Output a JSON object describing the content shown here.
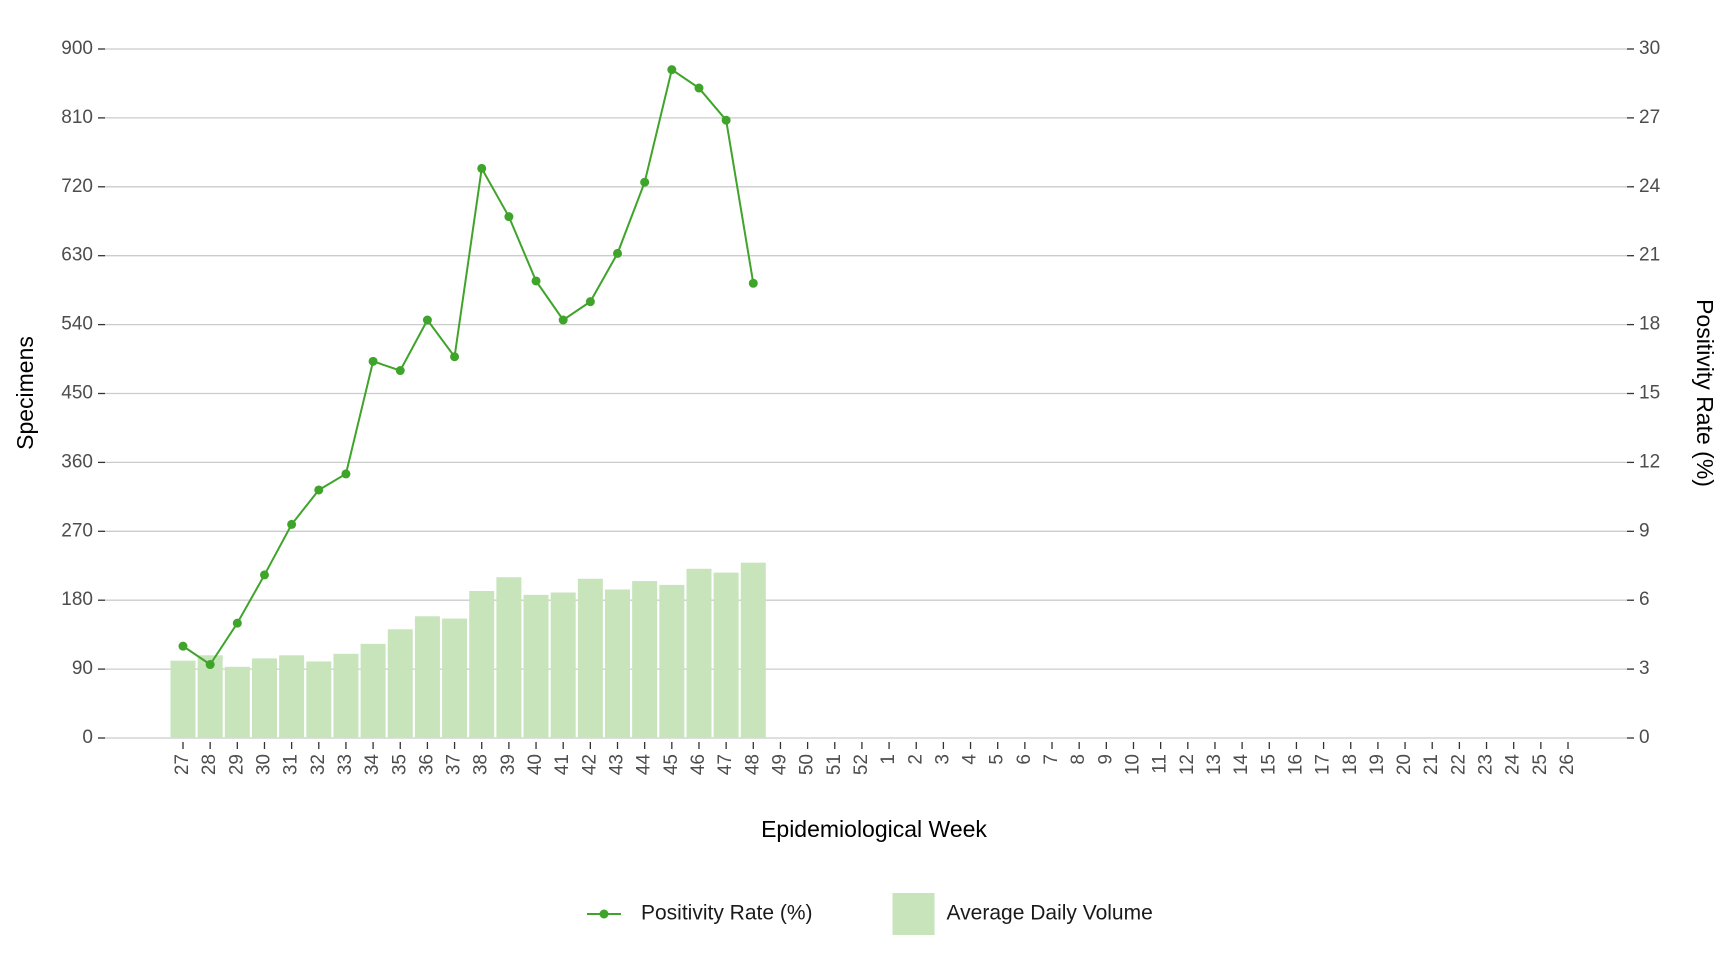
{
  "chart_data": {
    "type": "bar",
    "x_label": "Epidemiological Week",
    "y_label": "Specimens",
    "y2_label": "Positivity Rate (%)",
    "categories": [
      "27",
      "28",
      "29",
      "30",
      "31",
      "32",
      "33",
      "34",
      "35",
      "36",
      "37",
      "38",
      "39",
      "40",
      "41",
      "42",
      "43",
      "44",
      "45",
      "46",
      "47",
      "48",
      "49",
      "50",
      "51",
      "52",
      "1",
      "2",
      "3",
      "4",
      "5",
      "6",
      "7",
      "8",
      "9",
      "10",
      "11",
      "12",
      "13",
      "14",
      "15",
      "16",
      "17",
      "18",
      "19",
      "20",
      "21",
      "22",
      "23",
      "24",
      "25",
      "26"
    ],
    "series": [
      {
        "name": "Positivity Rate (%)",
        "type": "line",
        "axis": "y2",
        "color": "#3fa42a",
        "values": [
          4.0,
          3.2,
          5.0,
          7.1,
          9.3,
          10.8,
          11.5,
          16.4,
          16.0,
          18.2,
          16.6,
          24.8,
          22.7,
          19.9,
          18.2,
          19.0,
          21.1,
          24.2,
          29.1,
          28.3,
          26.9,
          19.8,
          null,
          null,
          null,
          null,
          null,
          null,
          null,
          null,
          null,
          null,
          null,
          null,
          null,
          null,
          null,
          null,
          null,
          null,
          null,
          null,
          null,
          null,
          null,
          null,
          null,
          null,
          null,
          null,
          null,
          null
        ]
      },
      {
        "name": "Average Daily Volume",
        "type": "bar",
        "axis": "y",
        "color": "#c7e4bb",
        "values": [
          101,
          108,
          93,
          104,
          108,
          100,
          110,
          123,
          142,
          159,
          156,
          192,
          210,
          187,
          190,
          208,
          194,
          205,
          200,
          221,
          216,
          229,
          null,
          null,
          null,
          null,
          null,
          null,
          null,
          null,
          null,
          null,
          null,
          null,
          null,
          null,
          null,
          null,
          null,
          null,
          null,
          null,
          null,
          null,
          null,
          null,
          null,
          null,
          null,
          null,
          null,
          null
        ]
      }
    ],
    "ylim": [
      0,
      900
    ],
    "yticks": [
      0,
      90,
      180,
      270,
      360,
      450,
      540,
      630,
      720,
      810,
      900
    ],
    "y2lim": [
      0,
      30
    ],
    "y2ticks": [
      0,
      3,
      6,
      9,
      12,
      15,
      18,
      21,
      24,
      27,
      30
    ],
    "grid": true,
    "legend": "bottom"
  }
}
